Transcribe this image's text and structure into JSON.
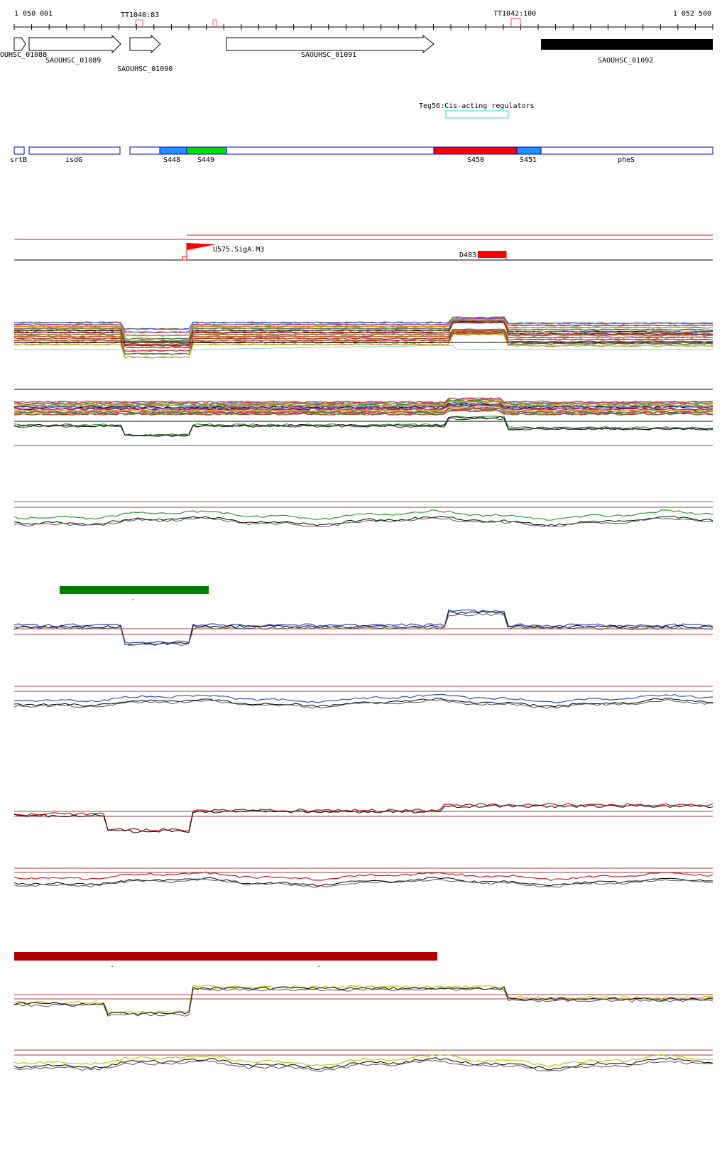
{
  "ruler": {
    "start_label": "1 050 001",
    "end_label": "1 052 500"
  },
  "terminators": [
    {
      "label": "TT1040:83",
      "labeled": true
    },
    {
      "label": "",
      "labeled": false
    },
    {
      "label": "TT1042:100",
      "labeled": true
    }
  ],
  "genes": [
    {
      "label": "OUHSC_01088",
      "strand": "+",
      "filled": false
    },
    {
      "label": "SAOUHSC_01089",
      "strand": "+",
      "filled": false
    },
    {
      "label": "SAOUHSC_01090",
      "strand": "+",
      "filled": false
    },
    {
      "label": "SAOUHSC_01091",
      "strand": "+",
      "filled": false
    },
    {
      "label": "SAOUHSC_01092",
      "strand": "+",
      "filled": true
    }
  ],
  "cis_regulator": {
    "label": "Teg56:Cis-acting regulators",
    "color": "#33d6d6"
  },
  "segments": [
    {
      "label": "srtB",
      "color": "#ffffff"
    },
    {
      "label": "isdG",
      "color": "#ffffff"
    },
    {
      "label": "",
      "color": "#ffffff"
    },
    {
      "label": "S448",
      "color": "#1e90ff"
    },
    {
      "label": "S449",
      "color": "#00dd00"
    },
    {
      "label": "",
      "color": "#ffffff"
    },
    {
      "label": "S450",
      "color": "#ff0000"
    },
    {
      "label": "S451",
      "color": "#1e90ff"
    },
    {
      "label": "pheS",
      "color": "#ffffff"
    }
  ],
  "promoter": {
    "label": "U575.SigA.M3",
    "color": "#ff0000"
  },
  "deletion": {
    "label": "D483",
    "color": "#ff0000"
  },
  "condition_bars": [
    {
      "color": "#008000",
      "ticks": [
        "-"
      ]
    },
    {
      "color": "#b00000",
      "ticks": [
        "-",
        "-"
      ]
    }
  ],
  "track_colors": {
    "green": "#2e9e2e",
    "blue": "#3050d0",
    "red": "#c82020",
    "yellow": "#c8c81e",
    "threshold": "#a04040"
  }
}
